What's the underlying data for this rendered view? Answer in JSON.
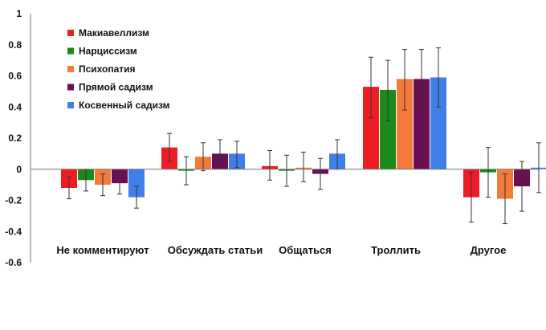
{
  "chart_data": {
    "type": "bar",
    "title": "",
    "xlabel": "",
    "ylabel": "",
    "ylim": [
      -0.6,
      1.0
    ],
    "yticks": [
      "1",
      "0.8",
      "0.6",
      "0.4",
      "0.2",
      "0",
      "-0.2",
      "-0.4",
      "-0.6"
    ],
    "legend_position": "top-left",
    "categories": [
      "Не комментируют",
      "Обсуждать статьи",
      "Общаться",
      "Троллить",
      "Другое"
    ],
    "series": [
      {
        "name": "Макиавеллизм",
        "color": "#ee1c25",
        "values": [
          -0.12,
          0.14,
          0.02,
          0.53,
          -0.18
        ],
        "err_low": [
          -0.19,
          0.05,
          -0.07,
          0.33,
          -0.34
        ],
        "err_high": [
          -0.05,
          0.23,
          0.12,
          0.72,
          -0.02
        ]
      },
      {
        "name": "Нарциссизм",
        "color": "#1a8a1a",
        "values": [
          -0.07,
          -0.01,
          -0.01,
          0.51,
          -0.02
        ],
        "err_low": [
          -0.14,
          -0.1,
          -0.11,
          0.31,
          -0.18
        ],
        "err_high": [
          0.0,
          0.08,
          0.09,
          0.7,
          0.14
        ]
      },
      {
        "name": "Психопатия",
        "color": "#f47a3c",
        "values": [
          -0.1,
          0.08,
          0.01,
          0.58,
          -0.19
        ],
        "err_low": [
          -0.17,
          -0.01,
          -0.08,
          0.38,
          -0.35
        ],
        "err_high": [
          -0.03,
          0.17,
          0.11,
          0.77,
          -0.03
        ]
      },
      {
        "name": "Прямой садизм",
        "color": "#6b0f55",
        "values": [
          -0.09,
          0.1,
          -0.03,
          0.58,
          -0.11
        ],
        "err_low": [
          -0.16,
          0.01,
          -0.13,
          0.38,
          -0.27
        ],
        "err_high": [
          -0.02,
          0.19,
          0.07,
          0.77,
          0.05
        ]
      },
      {
        "name": "Косвенный садизм",
        "color": "#3f7fe8",
        "values": [
          -0.18,
          0.1,
          0.1,
          0.59,
          0.01
        ],
        "err_low": [
          -0.25,
          0.01,
          0.0,
          0.4,
          -0.15
        ],
        "err_high": [
          -0.11,
          0.18,
          0.19,
          0.78,
          0.17
        ]
      }
    ]
  }
}
